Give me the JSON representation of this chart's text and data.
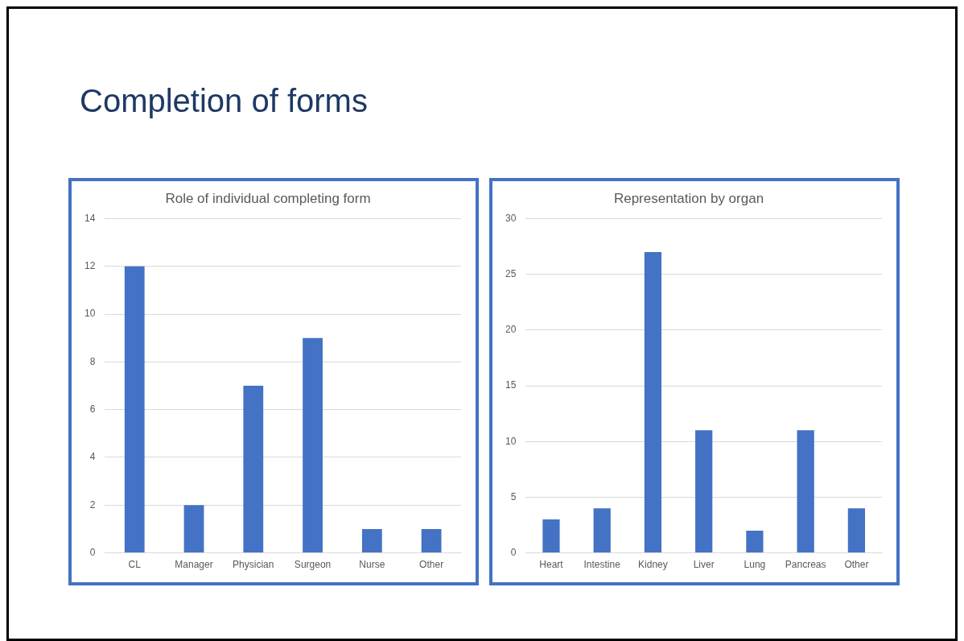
{
  "chart_data": [
    {
      "type": "bar",
      "title": "Role of individual completing form",
      "annotations": [
        "Completion of forms"
      ],
      "categories": [
        "CL",
        "Manager",
        "Physician",
        "Surgeon",
        "Nurse",
        "Other"
      ],
      "values": [
        12,
        2,
        7,
        9,
        1,
        1
      ],
      "color": "#4472c4",
      "ylim": [
        0,
        14
      ],
      "yticks": [
        0,
        2,
        4,
        6,
        8,
        10,
        12,
        14
      ],
      "grid": "y",
      "legend": false
    },
    {
      "type": "bar",
      "title": "Representation by organ",
      "categories": [
        "Heart",
        "Intestine",
        "Kidney",
        "Liver",
        "Lung",
        "Pancreas",
        "Other"
      ],
      "values": [
        3,
        4,
        27,
        11,
        2,
        11,
        4
      ],
      "color": "#4472c4",
      "ylim": [
        0,
        30
      ],
      "yticks": [
        0,
        5,
        10,
        15,
        20,
        25,
        30
      ],
      "grid": "y",
      "legend": false
    }
  ]
}
